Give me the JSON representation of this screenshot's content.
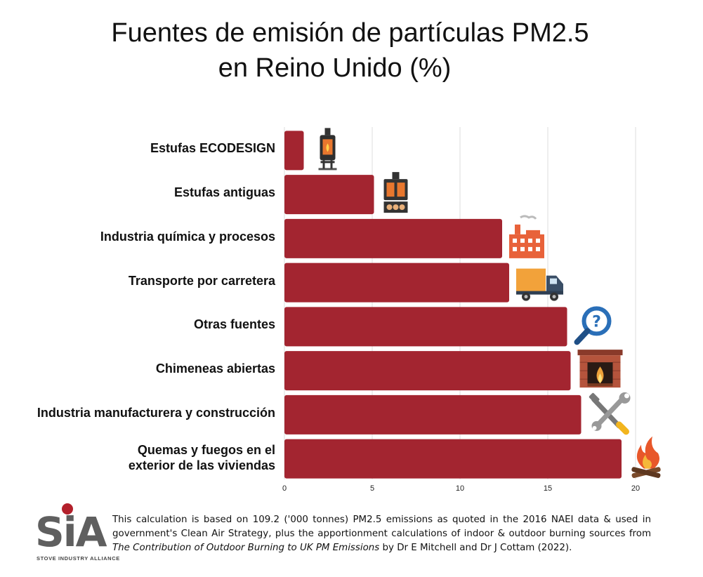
{
  "title_line1": "Fuentes de emisión de partículas PM2.5",
  "title_line2": "en Reino Unido (%)",
  "chart_data": {
    "type": "bar",
    "orientation": "horizontal",
    "categories": [
      "Estufas ECODESIGN",
      "Estufas antiguas",
      "Industria química y procesos",
      "Transporte por carretera",
      "Otras fuentes",
      "Chimeneas abiertas",
      "Industria manufacturera y construcción",
      "Quemas y fuegos en el exterior de las viviendas"
    ],
    "values": [
      1.1,
      5.1,
      12.4,
      12.8,
      16.1,
      16.3,
      16.9,
      19.2
    ],
    "xticks": [
      "0",
      "5",
      "10",
      "15",
      "20"
    ],
    "xlim": [
      0,
      20
    ],
    "grid": true,
    "bar_color": "#a32530",
    "icons": [
      "stove-icon",
      "wood-stove-icon",
      "factory-icon",
      "truck-icon",
      "magnifier-question-icon",
      "fireplace-icon",
      "tools-icon",
      "campfire-icon"
    ]
  },
  "logo": {
    "text": "SiA",
    "subtitle": "STOVE INDUSTRY ALLIANCE"
  },
  "footer": {
    "part1": "This calculation is based on 109.2 ('000 tonnes) PM2.5 emissions as quoted in the 2016 NAEI data & used in government's Clean Air Strategy, plus the apportionment calculations of indoor & outdoor burning sources from ",
    "italic": "The Contribution of Outdoor Burning to UK PM Emissions",
    "part2": " by Dr E Mitchell and Dr J Cottam (2022)."
  }
}
